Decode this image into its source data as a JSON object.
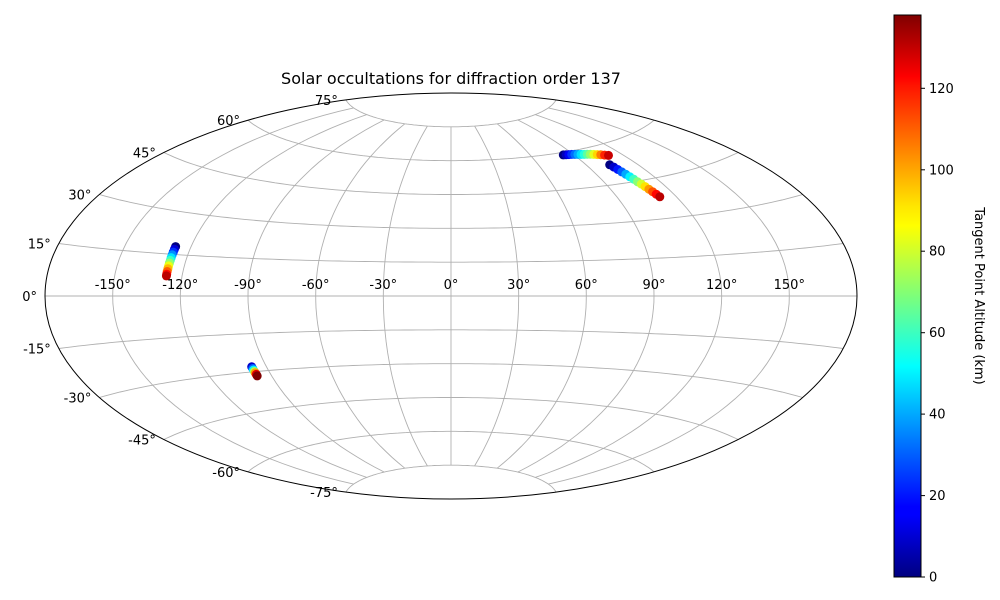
{
  "chart_data": {
    "type": "scatter",
    "projection": "aitoff",
    "title": "Solar occultations for diffraction order 137",
    "xlabel": "",
    "ylabel": "",
    "grid": true,
    "lon_ticks": [
      -150,
      -120,
      -90,
      -60,
      -30,
      0,
      30,
      60,
      90,
      120,
      150
    ],
    "lon_tick_labels": [
      "-150°",
      "-120°",
      "-90°",
      "-60°",
      "-30°",
      "0°",
      "30°",
      "60°",
      "90°",
      "120°",
      "150°"
    ],
    "lat_ticks": [
      -75,
      -60,
      -45,
      -30,
      -15,
      0,
      15,
      30,
      45,
      60,
      75
    ],
    "lat_tick_labels": [
      "-75°",
      "-60°",
      "-45°",
      "-30°",
      "-15°",
      "0°",
      "15°",
      "30°",
      "45°",
      "60°",
      "75°"
    ],
    "colormap": "jet",
    "colorbar": {
      "label": "Tangent Point Altitude (km)",
      "range": [
        0,
        138
      ],
      "ticks": [
        0,
        20,
        40,
        60,
        80,
        100,
        120
      ],
      "tick_labels": [
        "0",
        "20",
        "40",
        "60",
        "80",
        "100",
        "120"
      ]
    },
    "series": [
      {
        "points": [
          {
            "lon": -127,
            "lat": 17.8,
            "alt": 0
          },
          {
            "lon": -127,
            "lat": 16.8,
            "alt": 12
          },
          {
            "lon": -127,
            "lat": 15.8,
            "alt": 24
          },
          {
            "lon": -127,
            "lat": 14.8,
            "alt": 36
          },
          {
            "lon": -127,
            "lat": 13.8,
            "alt": 48
          },
          {
            "lon": -127,
            "lat": 12.8,
            "alt": 60
          },
          {
            "lon": -127,
            "lat": 11.8,
            "alt": 72
          },
          {
            "lon": -127,
            "lat": 10.8,
            "alt": 84
          },
          {
            "lon": -127,
            "lat": 9.8,
            "alt": 96
          },
          {
            "lon": -127,
            "lat": 8.8,
            "alt": 108
          },
          {
            "lon": -127,
            "lat": 7.8,
            "alt": 120
          },
          {
            "lon": -127,
            "lat": 7.2,
            "alt": 130
          }
        ]
      },
      {
        "points": [
          {
            "lon": -97,
            "lat": -28.0,
            "alt": 10
          },
          {
            "lon": -97,
            "lat": -28.7,
            "alt": 30
          },
          {
            "lon": -97,
            "lat": -29.3,
            "alt": 50
          },
          {
            "lon": -97,
            "lat": -29.9,
            "alt": 75
          },
          {
            "lon": -97,
            "lat": -30.5,
            "alt": 100
          },
          {
            "lon": -97,
            "lat": -31.1,
            "alt": 125
          },
          {
            "lon": -97,
            "lat": -31.7,
            "alt": 138
          }
        ]
      },
      {
        "points": [
          {
            "lon": 83,
            "lat": 59.0,
            "alt": 0
          },
          {
            "lon": 85,
            "lat": 58.9,
            "alt": 8
          },
          {
            "lon": 87,
            "lat": 58.8,
            "alt": 16
          },
          {
            "lon": 89,
            "lat": 58.7,
            "alt": 24
          },
          {
            "lon": 91,
            "lat": 58.5,
            "alt": 32
          },
          {
            "lon": 93,
            "lat": 58.3,
            "alt": 40
          },
          {
            "lon": 95,
            "lat": 58.1,
            "alt": 48
          },
          {
            "lon": 97,
            "lat": 57.9,
            "alt": 56
          },
          {
            "lon": 99,
            "lat": 57.7,
            "alt": 64
          },
          {
            "lon": 101,
            "lat": 57.5,
            "alt": 72
          },
          {
            "lon": 103,
            "lat": 57.2,
            "alt": 82
          },
          {
            "lon": 105,
            "lat": 56.9,
            "alt": 92
          },
          {
            "lon": 107,
            "lat": 56.6,
            "alt": 104
          },
          {
            "lon": 109,
            "lat": 56.2,
            "alt": 116
          },
          {
            "lon": 111,
            "lat": 55.8,
            "alt": 128
          }
        ]
      },
      {
        "points": [
          {
            "lon": 104,
            "lat": 52.5,
            "alt": 0
          },
          {
            "lon": 104.6,
            "lat": 51.4,
            "alt": 10
          },
          {
            "lon": 105.2,
            "lat": 50.3,
            "alt": 20
          },
          {
            "lon": 105.8,
            "lat": 49.2,
            "alt": 30
          },
          {
            "lon": 106.4,
            "lat": 48.1,
            "alt": 40
          },
          {
            "lon": 107.0,
            "lat": 47.0,
            "alt": 50
          },
          {
            "lon": 107.6,
            "lat": 45.9,
            "alt": 60
          },
          {
            "lon": 108.2,
            "lat": 44.8,
            "alt": 70
          },
          {
            "lon": 108.8,
            "lat": 43.7,
            "alt": 80
          },
          {
            "lon": 109.4,
            "lat": 42.6,
            "alt": 90
          },
          {
            "lon": 110.0,
            "lat": 41.5,
            "alt": 100
          },
          {
            "lon": 110.6,
            "lat": 40.4,
            "alt": 110
          },
          {
            "lon": 111.2,
            "lat": 39.3,
            "alt": 120
          },
          {
            "lon": 111.8,
            "lat": 38.2,
            "alt": 130
          }
        ]
      }
    ]
  }
}
